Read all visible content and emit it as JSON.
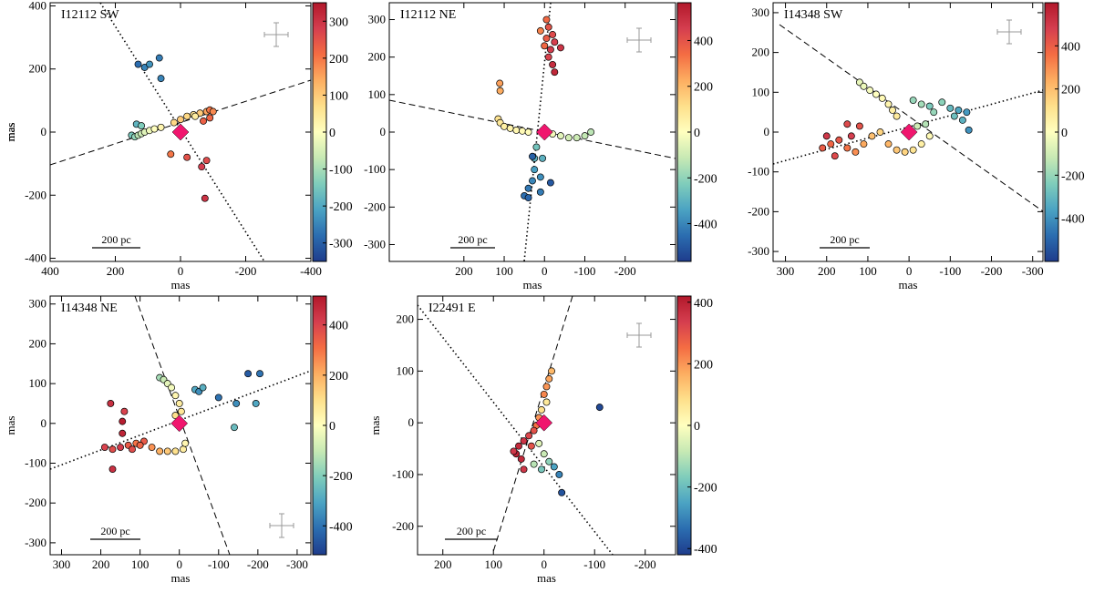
{
  "chart_data": [
    {
      "type": "scatter",
      "title": "I12112 SW",
      "xlabel": "mas",
      "ylabel": "mas",
      "scale_label": "200 pc",
      "xlim": [
        400,
        -400
      ],
      "ylim": [
        -410,
        410
      ],
      "xticks": [
        400,
        200,
        0,
        -200,
        -400
      ],
      "yticks": [
        -400,
        -200,
        0,
        200,
        400
      ],
      "source": {
        "x": 0,
        "y": 0
      },
      "x": [
        130,
        110,
        95,
        65,
        60,
        150,
        140,
        130,
        120,
        110,
        95,
        80,
        60,
        20,
        0,
        -20,
        -40,
        -60,
        -80,
        -90,
        -100,
        -90,
        -70,
        -45,
        135,
        120,
        30,
        -20,
        -65,
        -80,
        -75
      ],
      "y": [
        215,
        205,
        215,
        235,
        170,
        -10,
        -15,
        -10,
        -5,
        0,
        5,
        10,
        15,
        30,
        40,
        50,
        55,
        60,
        65,
        70,
        65,
        45,
        35,
        50,
        25,
        20,
        -70,
        -80,
        -110,
        -90,
        -210
      ],
      "color_values": [
        -280,
        -250,
        -230,
        -260,
        -250,
        -150,
        -120,
        -80,
        -60,
        -40,
        -20,
        0,
        20,
        80,
        100,
        80,
        60,
        100,
        150,
        200,
        180,
        220,
        230,
        40,
        -180,
        -140,
        200,
        250,
        280,
        260,
        300
      ],
      "colorbar": {
        "lim": [
          -350,
          350
        ],
        "ticks": [
          -300,
          -200,
          -100,
          0,
          100,
          200,
          300
        ]
      }
    },
    {
      "type": "scatter",
      "title": "I12112 NE",
      "xlabel": "mas",
      "ylabel": "mas",
      "scale_label": "200 pc",
      "xlim": [
        385,
        -325
      ],
      "ylim": [
        -345,
        345
      ],
      "xticks": [
        200,
        100,
        0,
        -100,
        -200
      ],
      "yticks": [
        -300,
        -200,
        -100,
        0,
        100,
        200,
        300
      ],
      "source": {
        "x": 0,
        "y": 0
      },
      "x": [
        -5,
        -10,
        -20,
        -5,
        -25,
        -15,
        -40,
        -10,
        -20,
        -25,
        10,
        0,
        115,
        110,
        100,
        85,
        70,
        55,
        40,
        111,
        110,
        -20,
        -40,
        -60,
        -80,
        -100,
        -115,
        20,
        25,
        25,
        10,
        30,
        40,
        50,
        40,
        10,
        -15,
        30,
        5
      ],
      "y": [
        300,
        280,
        260,
        250,
        240,
        220,
        225,
        200,
        180,
        160,
        270,
        230,
        35,
        25,
        15,
        10,
        5,
        3,
        0,
        130,
        110,
        -5,
        -10,
        -15,
        -15,
        -10,
        0,
        -40,
        -70,
        -100,
        -120,
        -130,
        -150,
        -170,
        -175,
        -160,
        -135,
        -65,
        -70
      ],
      "color_values": [
        350,
        400,
        420,
        380,
        450,
        460,
        480,
        440,
        500,
        520,
        300,
        350,
        100,
        80,
        60,
        40,
        30,
        20,
        10,
        250,
        230,
        -20,
        -60,
        -90,
        -100,
        -120,
        -130,
        -250,
        -300,
        -350,
        -380,
        -400,
        -430,
        -450,
        -470,
        -420,
        -500,
        -480,
        -300
      ],
      "colorbar": {
        "lim": [
          -565,
          565
        ],
        "ticks": [
          -400,
          -200,
          0,
          200,
          400
        ]
      }
    },
    {
      "type": "scatter",
      "title": "I14348 SW",
      "xlabel": "mas",
      "ylabel": "mas",
      "scale_label": "200 pc",
      "xlim": [
        330,
        -325
      ],
      "ylim": [
        -325,
        325
      ],
      "xticks": [
        300,
        200,
        100,
        0,
        -100,
        -200,
        -300
      ],
      "yticks": [
        -300,
        -200,
        -100,
        0,
        100,
        200,
        300
      ],
      "source": {
        "x": 0,
        "y": 0
      },
      "x": [
        120,
        110,
        95,
        80,
        65,
        50,
        40,
        30,
        -10,
        -30,
        -50,
        -80,
        -100,
        -120,
        -140,
        -130,
        -110,
        -60,
        -145,
        -40,
        -20,
        210,
        190,
        170,
        150,
        130,
        180,
        140,
        200,
        110,
        90,
        70,
        50,
        30,
        10,
        -10,
        -30,
        -50,
        150,
        120
      ],
      "y": [
        125,
        115,
        105,
        95,
        85,
        70,
        55,
        40,
        80,
        70,
        65,
        75,
        60,
        55,
        50,
        30,
        40,
        50,
        5,
        20,
        15,
        -40,
        -30,
        -20,
        -40,
        -50,
        -60,
        -10,
        -10,
        -30,
        -10,
        0,
        -30,
        -45,
        -50,
        -45,
        -30,
        -10,
        20,
        15
      ],
      "color_values": [
        -50,
        -40,
        -20,
        0,
        20,
        40,
        60,
        80,
        -200,
        -180,
        -250,
        -220,
        -300,
        -350,
        -380,
        -320,
        -280,
        -200,
        -400,
        -150,
        -100,
        400,
        380,
        420,
        350,
        300,
        450,
        480,
        500,
        250,
        200,
        150,
        220,
        180,
        150,
        100,
        60,
        20,
        450,
        430
      ],
      "colorbar": {
        "lim": [
          -600,
          600
        ],
        "ticks": [
          -400,
          -200,
          0,
          200,
          400
        ]
      }
    },
    {
      "type": "scatter",
      "title": "I14348 NE",
      "xlabel": "mas",
      "ylabel": "mas",
      "scale_label": "200 pc",
      "xlim": [
        329,
        -335
      ],
      "ylim": [
        -330,
        320
      ],
      "xticks": [
        300,
        200,
        100,
        0,
        -100,
        -200,
        -300
      ],
      "yticks": [
        -300,
        -200,
        -100,
        0,
        100,
        200,
        300
      ],
      "source": {
        "x": 0,
        "y": 0
      },
      "x": [
        50,
        40,
        30,
        20,
        10,
        0,
        -5,
        10,
        -40,
        -50,
        -60,
        -100,
        -175,
        -205,
        -145,
        -195,
        -140,
        175,
        140,
        145,
        145,
        170,
        190,
        170,
        150,
        130,
        110,
        90,
        70,
        50,
        30,
        10,
        -10,
        -15,
        120,
        100
      ],
      "y": [
        115,
        110,
        100,
        90,
        70,
        50,
        30,
        20,
        85,
        80,
        90,
        65,
        125,
        125,
        50,
        50,
        -10,
        50,
        30,
        5,
        -25,
        -115,
        -60,
        -65,
        -60,
        -55,
        -50,
        -45,
        -60,
        -70,
        -70,
        -70,
        -65,
        -50,
        -65,
        -55
      ],
      "color_values": [
        -150,
        -100,
        -50,
        -20,
        30,
        60,
        80,
        100,
        -300,
        -350,
        -280,
        -400,
        -450,
        -400,
        -350,
        -300,
        -250,
        450,
        400,
        500,
        480,
        450,
        400,
        380,
        420,
        350,
        300,
        350,
        250,
        200,
        150,
        100,
        60,
        30,
        380,
        330
      ],
      "colorbar": {
        "lim": [
          -515,
          515
        ],
        "ticks": [
          -400,
          -200,
          0,
          200,
          400
        ]
      }
    },
    {
      "type": "scatter",
      "title": "I22491 E",
      "xlabel": "mas",
      "ylabel": "mas",
      "scale_label": "200 pc",
      "xlim": [
        250,
        -260
      ],
      "ylim": [
        -255,
        245
      ],
      "xticks": [
        200,
        100,
        0,
        -100,
        -200
      ],
      "yticks": [
        -200,
        -100,
        0,
        100,
        200
      ],
      "source": {
        "x": 0,
        "y": 0
      },
      "x": [
        -15,
        -10,
        -5,
        0,
        -5,
        5,
        10,
        15,
        20,
        30,
        40,
        50,
        55,
        60,
        45,
        25,
        10,
        0,
        -10,
        -20,
        -30,
        -35,
        -110,
        20,
        5,
        40
      ],
      "y": [
        100,
        85,
        70,
        55,
        40,
        25,
        10,
        -5,
        -15,
        -25,
        -35,
        -45,
        -60,
        -55,
        -70,
        -45,
        -40,
        -60,
        -75,
        -85,
        -100,
        -135,
        30,
        -80,
        -90,
        -90
      ],
      "color_values": [
        150,
        180,
        200,
        220,
        60,
        80,
        200,
        250,
        300,
        320,
        360,
        380,
        400,
        350,
        380,
        300,
        -50,
        -80,
        -150,
        -250,
        -300,
        -380,
        -400,
        -100,
        -180,
        350
      ],
      "colorbar": {
        "lim": [
          -420,
          420
        ],
        "ticks": [
          -400,
          -200,
          0,
          200,
          400
        ]
      }
    }
  ],
  "colormap": [
    "#1e3c8c",
    "#2b6db0",
    "#4ba3c3",
    "#7fcdbb",
    "#c7e9b4",
    "#ffffbf",
    "#fee08b",
    "#fdae61",
    "#f46d43",
    "#d53e4f",
    "#b2182b"
  ]
}
